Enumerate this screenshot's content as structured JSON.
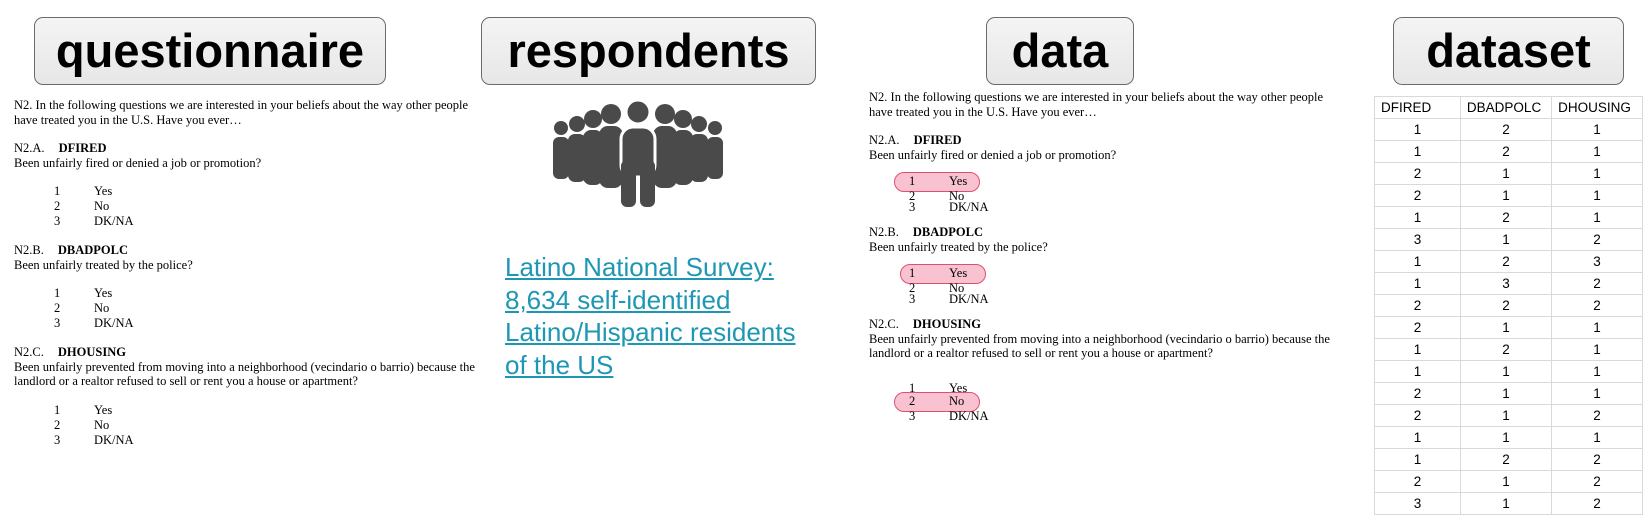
{
  "headers": {
    "questionnaire": "questionnaire",
    "respondents": "respondents",
    "data": "data",
    "dataset": "dataset"
  },
  "question": {
    "intro": "N2.  In the following questions we are interested in your beliefs about the way other people have treated you in the U.S.  Have you ever…",
    "items": [
      {
        "code": "N2.A.",
        "var": "DFIRED",
        "text": "Been unfairly fired or denied a job or promotion?"
      },
      {
        "code": "N2.B.",
        "var": "DBADPOLC",
        "text": "Been unfairly treated by the police?"
      },
      {
        "code": "N2.C.",
        "var": "DHOUSING",
        "text": "Been unfairly prevented from moving into a neighborhood (vecindario o barrio) because the landlord or a realtor refused to sell or rent you a house or apartment?"
      }
    ],
    "options": [
      {
        "num": "1",
        "label": "Yes"
      },
      {
        "num": "2",
        "label": "No"
      },
      {
        "num": "3",
        "label": "DK/NA"
      }
    ]
  },
  "respondents": {
    "icon": "crowd-icon",
    "survey_link": "Latino National Survey: 8,634 self-identified Latino/Hispanic residents of the US"
  },
  "data_answers": [
    "1",
    "1",
    "2"
  ],
  "colors": {
    "link": "#1e97b4",
    "highlight": "#e0506e",
    "icon": "#4a4a4a"
  },
  "dataset": {
    "columns": [
      "DFIRED",
      "DBADPOLC",
      "DHOUSING"
    ],
    "rows": [
      [
        "1",
        "2",
        "1"
      ],
      [
        "1",
        "2",
        "1"
      ],
      [
        "2",
        "1",
        "1"
      ],
      [
        "2",
        "1",
        "1"
      ],
      [
        "1",
        "2",
        "1"
      ],
      [
        "3",
        "1",
        "2"
      ],
      [
        "1",
        "2",
        "3"
      ],
      [
        "1",
        "3",
        "2"
      ],
      [
        "2",
        "2",
        "2"
      ],
      [
        "2",
        "1",
        "1"
      ],
      [
        "1",
        "2",
        "1"
      ],
      [
        "1",
        "1",
        "1"
      ],
      [
        "2",
        "1",
        "1"
      ],
      [
        "2",
        "1",
        "2"
      ],
      [
        "1",
        "1",
        "1"
      ],
      [
        "1",
        "2",
        "2"
      ],
      [
        "2",
        "1",
        "2"
      ],
      [
        "3",
        "1",
        "2"
      ]
    ]
  }
}
